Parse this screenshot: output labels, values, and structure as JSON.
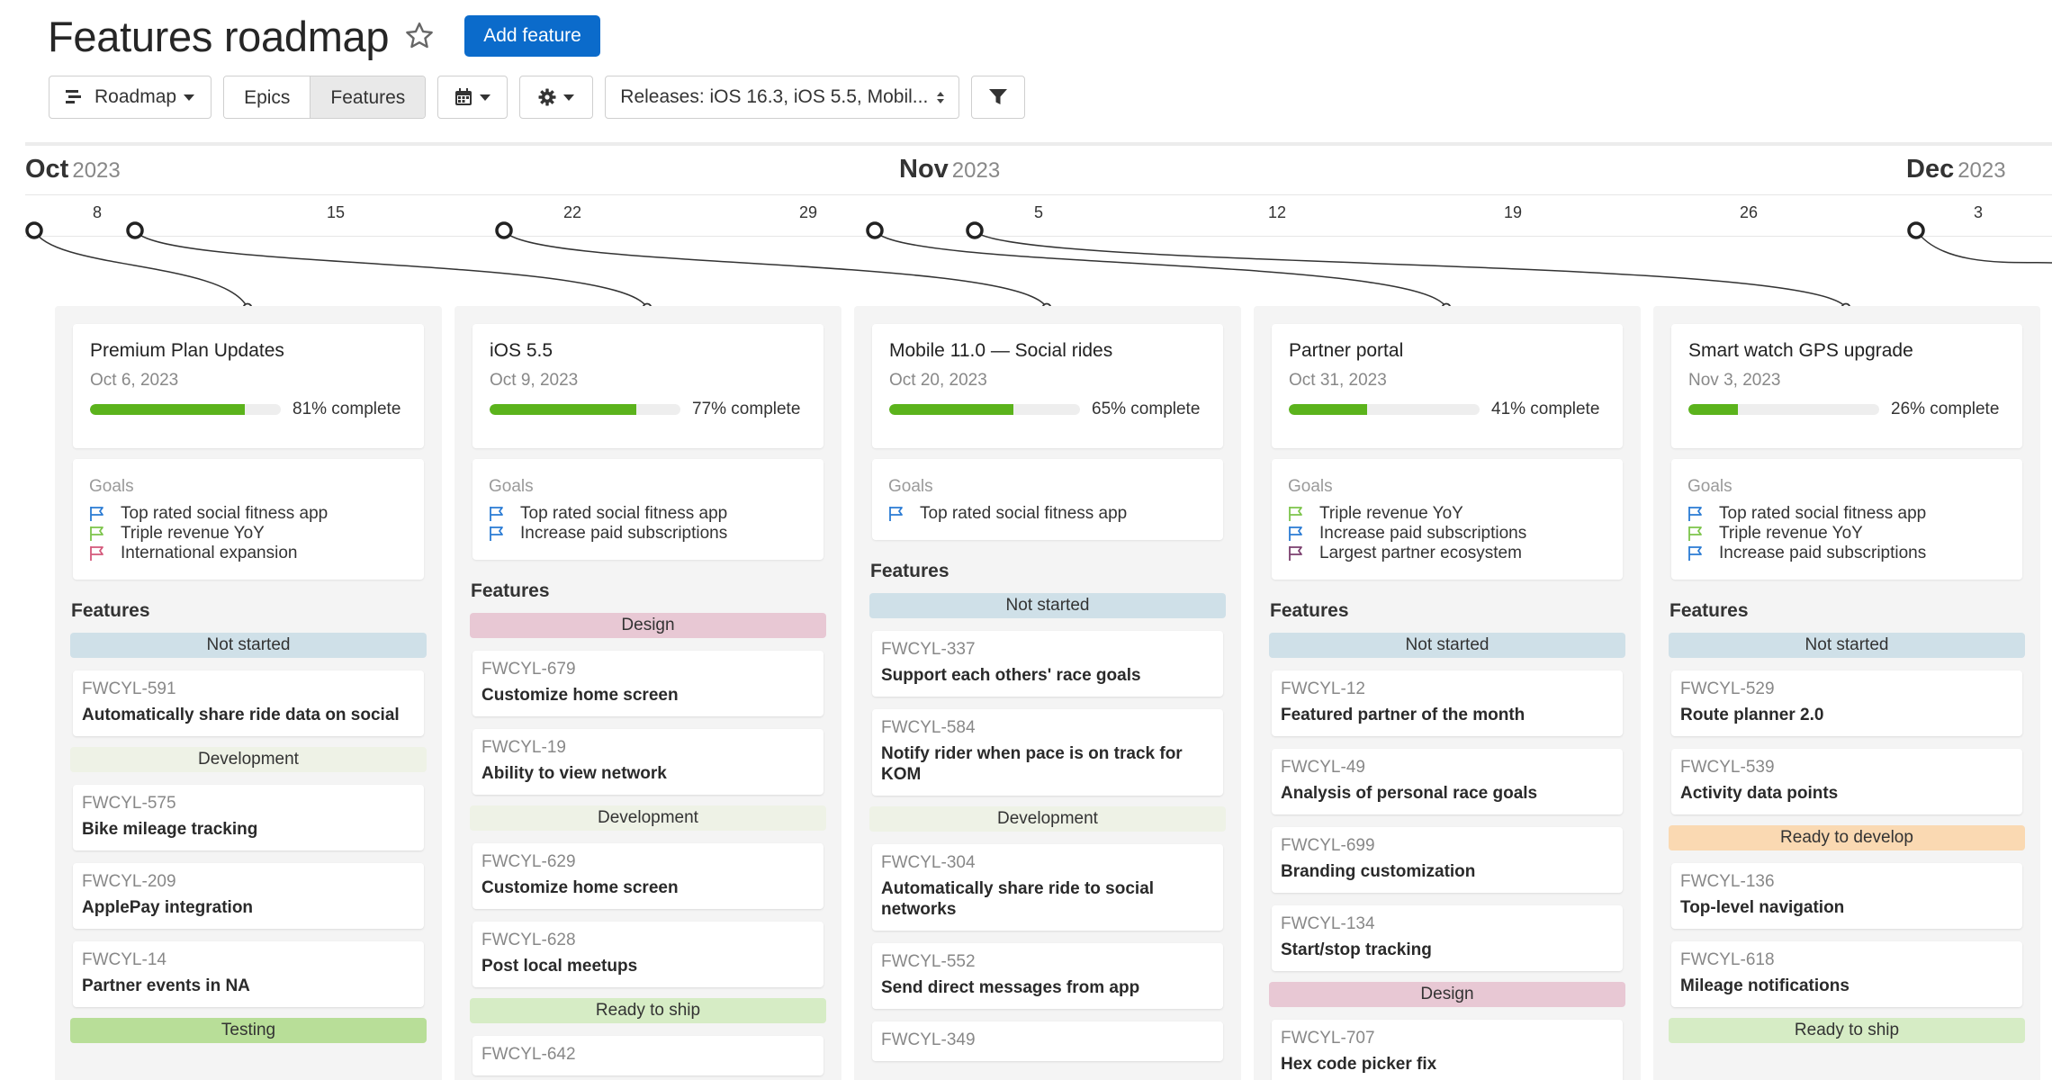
{
  "header": {
    "title": "Features roadmap",
    "add_button": "Add feature"
  },
  "toolbar": {
    "view_label": "Roadmap",
    "seg_epics": "Epics",
    "seg_features": "Features",
    "releases_filter": "Releases: iOS 16.3, iOS 5.5, Mobil..."
  },
  "timeline": {
    "months": [
      {
        "name": "Oct",
        "year": "2023"
      },
      {
        "name": "Nov",
        "year": "2023"
      },
      {
        "name": "Dec",
        "year": "2023"
      }
    ],
    "days": [
      "8",
      "15",
      "22",
      "29",
      "5",
      "12",
      "19",
      "26",
      "3"
    ]
  },
  "colors": {
    "progress": "#5bb31c",
    "accent": "#0b6bcb",
    "status_not_started": "#cfe0e8",
    "status_development": "#eef2e6",
    "status_testing": "#b8de98",
    "status_design": "#e8c8d4",
    "status_ready_to_ship": "#d6ecc5",
    "status_ready_to_develop": "#fad9b2"
  },
  "columns": [
    {
      "release": {
        "name": "Premium Plan Updates",
        "date": "Oct 6, 2023",
        "progress": 81,
        "progress_label": "81% complete"
      },
      "goals_label": "Goals",
      "goals": [
        {
          "text": "Top rated social fitness app",
          "flag": "blue"
        },
        {
          "text": "Triple revenue YoY",
          "flag": "green"
        },
        {
          "text": "International expansion",
          "flag": "red"
        }
      ],
      "features_label": "Features",
      "groups": [
        {
          "status": "Not started",
          "color": "#cfe0e8",
          "items": [
            {
              "id": "FWCYL-591",
              "name": "Automatically share ride data on social"
            }
          ]
        },
        {
          "status": "Development",
          "color": "#eef2e6",
          "items": [
            {
              "id": "FWCYL-575",
              "name": "Bike mileage tracking"
            },
            {
              "id": "FWCYL-209",
              "name": "ApplePay integration"
            },
            {
              "id": "FWCYL-14",
              "name": "Partner events in NA"
            }
          ]
        },
        {
          "status": "Testing",
          "color": "#b8de98",
          "items": []
        }
      ]
    },
    {
      "release": {
        "name": "iOS 5.5",
        "date": "Oct 9, 2023",
        "progress": 77,
        "progress_label": "77% complete"
      },
      "goals_label": "Goals",
      "goals": [
        {
          "text": "Top rated social fitness app",
          "flag": "blue"
        },
        {
          "text": "Increase paid subscriptions",
          "flag": "blue"
        }
      ],
      "features_label": "Features",
      "groups": [
        {
          "status": "Design",
          "color": "#e8c8d4",
          "items": [
            {
              "id": "FWCYL-679",
              "name": "Customize home screen"
            },
            {
              "id": "FWCYL-19",
              "name": "Ability to view network"
            }
          ]
        },
        {
          "status": "Development",
          "color": "#eef2e6",
          "items": [
            {
              "id": "FWCYL-629",
              "name": "Customize home screen"
            },
            {
              "id": "FWCYL-628",
              "name": "Post local meetups"
            }
          ]
        },
        {
          "status": "Ready to ship",
          "color": "#d6ecc5",
          "items": [
            {
              "id": "FWCYL-642",
              "name": ""
            }
          ]
        }
      ]
    },
    {
      "release": {
        "name": "Mobile 11.0 — Social rides",
        "date": "Oct 20, 2023",
        "progress": 65,
        "progress_label": "65% complete"
      },
      "goals_label": "Goals",
      "goals": [
        {
          "text": "Top rated social fitness app",
          "flag": "blue"
        }
      ],
      "features_label": "Features",
      "groups": [
        {
          "status": "Not started",
          "color": "#cfe0e8",
          "items": [
            {
              "id": "FWCYL-337",
              "name": "Support each others' race goals"
            },
            {
              "id": "FWCYL-584",
              "name": "Notify rider when pace is on track for KOM"
            }
          ]
        },
        {
          "status": "Development",
          "color": "#eef2e6",
          "items": [
            {
              "id": "FWCYL-304",
              "name": "Automatically share ride to social networks"
            },
            {
              "id": "FWCYL-552",
              "name": "Send direct messages from app"
            },
            {
              "id": "FWCYL-349",
              "name": ""
            }
          ]
        }
      ]
    },
    {
      "release": {
        "name": "Partner portal",
        "date": "Oct 31, 2023",
        "progress": 41,
        "progress_label": "41% complete"
      },
      "goals_label": "Goals",
      "goals": [
        {
          "text": "Triple revenue YoY",
          "flag": "green"
        },
        {
          "text": "Increase paid subscriptions",
          "flag": "blue"
        },
        {
          "text": "Largest partner ecosystem",
          "flag": "purple"
        }
      ],
      "features_label": "Features",
      "groups": [
        {
          "status": "Not started",
          "color": "#cfe0e8",
          "items": [
            {
              "id": "FWCYL-12",
              "name": "Featured partner of the month"
            },
            {
              "id": "FWCYL-49",
              "name": "Analysis of personal race goals"
            },
            {
              "id": "FWCYL-699",
              "name": "Branding customization"
            },
            {
              "id": "FWCYL-134",
              "name": "Start/stop tracking"
            }
          ]
        },
        {
          "status": "Design",
          "color": "#e8c8d4",
          "items": [
            {
              "id": "FWCYL-707",
              "name": "Hex code picker fix"
            }
          ]
        }
      ]
    },
    {
      "release": {
        "name": "Smart watch GPS upgrade",
        "date": "Nov 3, 2023",
        "progress": 26,
        "progress_label": "26% complete"
      },
      "goals_label": "Goals",
      "goals": [
        {
          "text": "Top rated social fitness app",
          "flag": "blue"
        },
        {
          "text": "Triple revenue YoY",
          "flag": "green"
        },
        {
          "text": "Increase paid subscriptions",
          "flag": "blue"
        }
      ],
      "features_label": "Features",
      "groups": [
        {
          "status": "Not started",
          "color": "#cfe0e8",
          "items": [
            {
              "id": "FWCYL-529",
              "name": "Route planner 2.0"
            },
            {
              "id": "FWCYL-539",
              "name": "Activity data points"
            }
          ]
        },
        {
          "status": "Ready to develop",
          "color": "#fad9b2",
          "items": [
            {
              "id": "FWCYL-136",
              "name": "Top-level navigation"
            },
            {
              "id": "FWCYL-618",
              "name": "Mileage notifications"
            }
          ]
        },
        {
          "status": "Ready to ship",
          "color": "#d6ecc5",
          "items": []
        }
      ]
    }
  ]
}
